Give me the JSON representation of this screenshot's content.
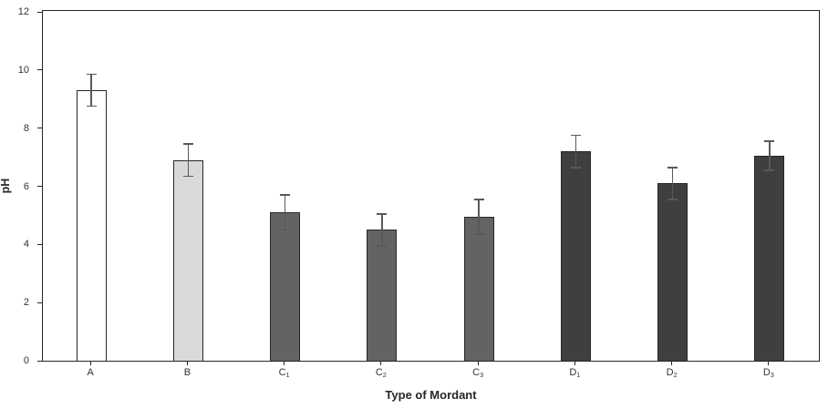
{
  "chart_data": {
    "type": "bar",
    "title": "",
    "xlabel": "Type of Mordant",
    "ylabel": "pH",
    "ylim": [
      0,
      12
    ],
    "yticks": [
      0,
      2,
      4,
      6,
      8,
      10,
      12
    ],
    "grid": false,
    "legend": false,
    "categories": [
      {
        "base": "A",
        "sub": ""
      },
      {
        "base": "B",
        "sub": ""
      },
      {
        "base": "C",
        "sub": "1"
      },
      {
        "base": "C",
        "sub": "2"
      },
      {
        "base": "C",
        "sub": "3"
      },
      {
        "base": "D",
        "sub": "1"
      },
      {
        "base": "D",
        "sub": "2"
      },
      {
        "base": "D",
        "sub": "3"
      }
    ],
    "values": [
      9.3,
      6.9,
      5.1,
      4.5,
      4.95,
      7.2,
      6.1,
      7.05
    ],
    "errors": [
      0.55,
      0.55,
      0.6,
      0.55,
      0.6,
      0.55,
      0.55,
      0.5
    ],
    "bar_fills": [
      "#ffffff",
      "#d9d9d9",
      "#636363",
      "#636363",
      "#636363",
      "#3f3f3f",
      "#3f3f3f",
      "#3f3f3f"
    ],
    "bar_border_color": "#262626",
    "error_bar_color": "#595959",
    "axis_color": "#262626",
    "tick_label_color": "#333333",
    "background": "#ffffff"
  }
}
